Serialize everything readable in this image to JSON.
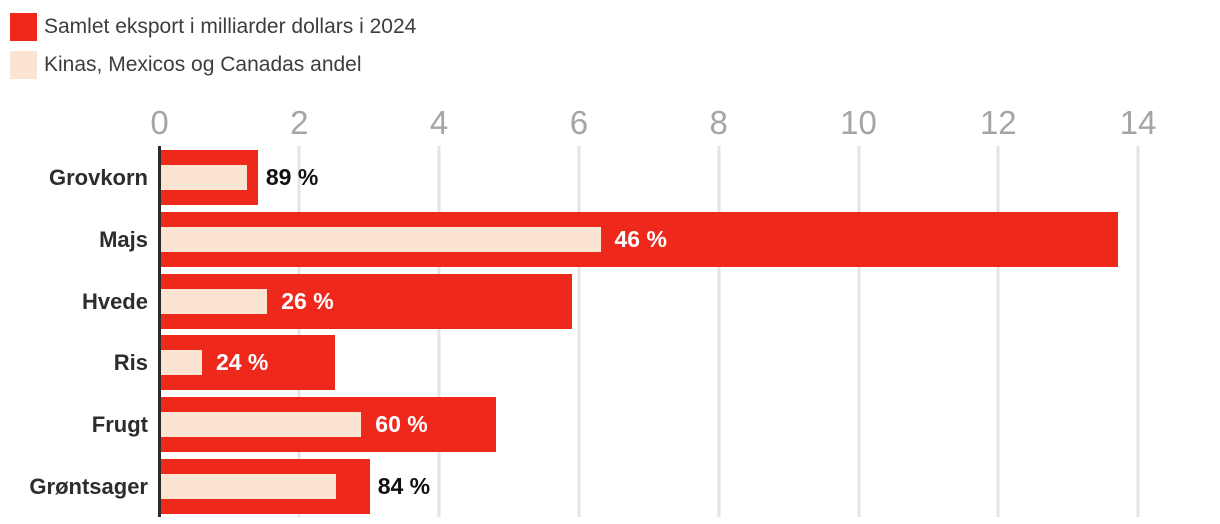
{
  "legend": {
    "items": [
      {
        "label": "Samlet eksport i milliarder dollars i 2024",
        "color": "#ee291c"
      },
      {
        "label": "Kinas, Mexicos og Canadas andel",
        "color": "#fce4d3"
      }
    ]
  },
  "chart_data": {
    "type": "bar",
    "orientation": "horizontal",
    "title": "",
    "categories": [
      "Grovkorn",
      "Majs",
      "Hvede",
      "Ris",
      "Frugt",
      "Grøntsager"
    ],
    "series": [
      {
        "name": "Samlet eksport i milliarder dollars i 2024",
        "unit": "mia. dollars",
        "values": [
          1.4,
          13.7,
          5.9,
          2.5,
          4.8,
          3.0
        ],
        "color": "#ee291c"
      },
      {
        "name": "Kinas, Mexicos og Canadas andel",
        "unit": "%",
        "values": [
          89,
          46,
          26,
          24,
          60,
          84
        ],
        "color": "#fce4d3"
      }
    ],
    "value_labels": [
      "89 %",
      "46 %",
      "26 %",
      "24 %",
      "60 %",
      "84 %"
    ],
    "xlim": [
      0,
      14
    ],
    "x_ticks": [
      0,
      2,
      4,
      6,
      8,
      10,
      12,
      14
    ],
    "grid": "vertical-gridlines",
    "legend_position": "top-left"
  },
  "colors": {
    "bar_total": "#ee291c",
    "bar_share": "#fce4d3",
    "axis_line": "#2b2b2b",
    "gridline": "#e4e4e4",
    "tick_text": "#a5a5a5",
    "category_text": "#2d2d2d",
    "label_inside": "#ffffff",
    "label_outside": "#111111"
  }
}
